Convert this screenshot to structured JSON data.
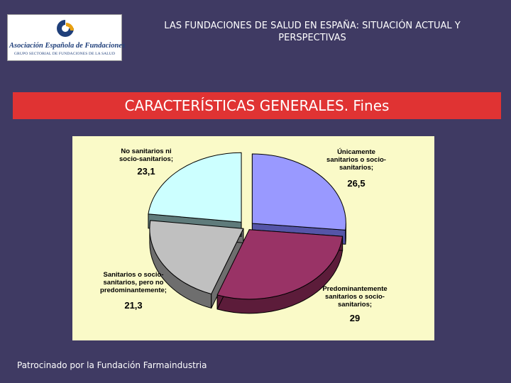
{
  "logo": {
    "name": "Asociación Española de Fundaciones",
    "subtitle": "GRUPO SECTORIAL DE FUNDACIONES DE LA SALUD"
  },
  "header": {
    "title_line1": "LAS FUNDACIONES DE SALUD EN ESPAÑA: SITUACIÓN ACTUAL Y",
    "title_line2": "PERSPECTIVAS"
  },
  "band": {
    "title": "CARACTERÍSTICAS GENERALES. Fines"
  },
  "chart_data": {
    "type": "pie",
    "style": "3d-exploded",
    "categories": [
      "Únicamente sanitarios o socio-sanitarios;",
      "Predominantemente sanitarios o socio-sanitarios;",
      "Sanitarios o socio-sanitarios, pero no predominantemente;",
      "No sanitarios ni socio-sanitarios;"
    ],
    "values": [
      26.5,
      29,
      21.3,
      23.1
    ],
    "value_labels": [
      "26,5",
      "29",
      "21,3",
      "23,1"
    ],
    "colors": [
      "#9999ff",
      "#993366",
      "#c0c0c0",
      "#ccffff"
    ],
    "side_colors": [
      "#5555a8",
      "#5c1c3a",
      "#6e6e6e",
      "#5f7b7b"
    ],
    "labels": [
      [
        "Únicamente",
        "sanitarios o socio-",
        "sanitarios;"
      ],
      [
        "Predominantemente",
        "sanitarios o socio-",
        "sanitarios;"
      ],
      [
        "Sanitarios o socio-",
        "sanitarios, pero no",
        "predominantemente;"
      ],
      [
        "No sanitarios ni",
        "socio-sanitarios;"
      ]
    ]
  },
  "footer": {
    "text": "Patrocinado por la Fundación Farmaindustria"
  }
}
